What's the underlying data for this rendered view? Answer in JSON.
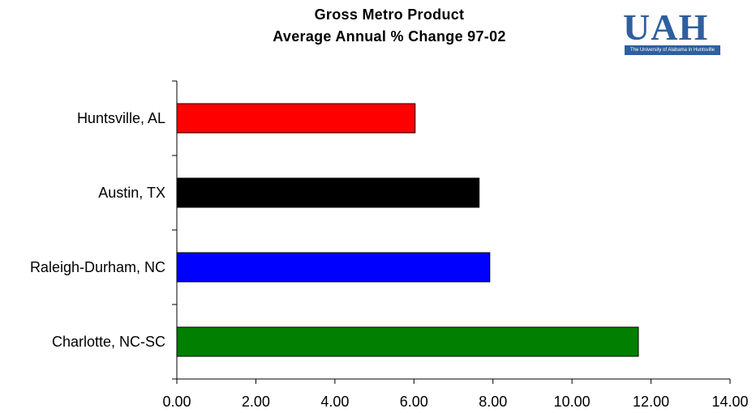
{
  "title": {
    "line1": "Gross Metro Product",
    "line2": "Average Annual % Change 97-02"
  },
  "logo": {
    "text": "UAH",
    "subtitle": "The University of Alabama in Huntsville"
  },
  "colors": {
    "bar_outline": "#000000",
    "logo_blue": "#2f5f9e"
  },
  "chart_data": {
    "type": "bar",
    "orientation": "horizontal",
    "title": "Gross Metro Product Average Annual % Change 97-02",
    "categories": [
      "Huntsville, AL",
      "Austin, TX",
      "Raleigh-Durham, NC",
      "Charlotte, NC-SC"
    ],
    "values": [
      6.03,
      7.65,
      7.92,
      11.68
    ],
    "bar_colors": [
      "#ff0000",
      "#000000",
      "#0000ff",
      "#007f00"
    ],
    "xlim": [
      0,
      14
    ],
    "xticks": [
      "0.00",
      "2.00",
      "4.00",
      "6.00",
      "8.00",
      "10.00",
      "12.00",
      "14.00"
    ],
    "xlabel": "",
    "ylabel": "",
    "grid": false,
    "legend": "none"
  }
}
